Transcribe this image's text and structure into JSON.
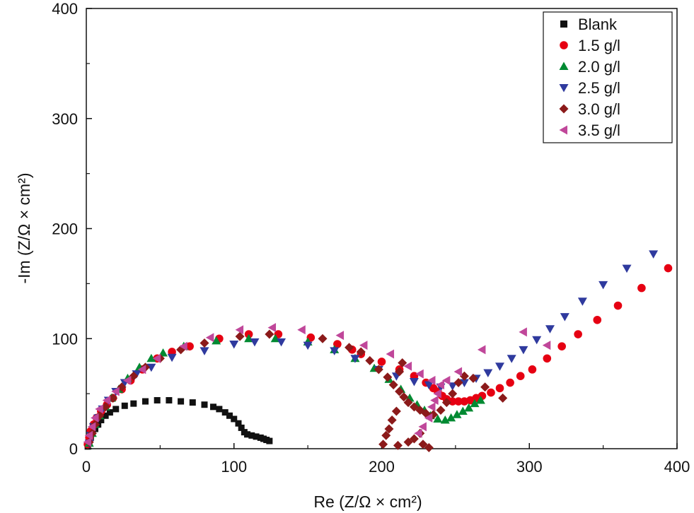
{
  "chart_data": {
    "type": "scatter",
    "title": "",
    "xlabel": "Re (Z/Ω × cm²)",
    "ylabel": "-Im (Z/Ω × cm²)",
    "xlim": [
      0,
      400
    ],
    "ylim": [
      0,
      400
    ],
    "x_ticks": [
      "0",
      "100",
      "200",
      "300",
      "400"
    ],
    "y_ticks": [
      "0",
      "100",
      "200",
      "300",
      "400"
    ],
    "legend_position": "top-right",
    "series": [
      {
        "name": "Blank",
        "marker": "square",
        "color": "#111111",
        "points": [
          [
            1,
            2
          ],
          [
            2,
            6
          ],
          [
            3,
            10
          ],
          [
            4,
            14
          ],
          [
            6,
            18
          ],
          [
            8,
            22
          ],
          [
            10,
            26
          ],
          [
            13,
            30
          ],
          [
            16,
            33
          ],
          [
            20,
            36
          ],
          [
            26,
            39
          ],
          [
            32,
            41
          ],
          [
            40,
            43
          ],
          [
            48,
            44
          ],
          [
            56,
            44
          ],
          [
            64,
            43
          ],
          [
            72,
            42
          ],
          [
            80,
            40
          ],
          [
            86,
            38
          ],
          [
            90,
            36
          ],
          [
            94,
            33
          ],
          [
            97,
            30
          ],
          [
            100,
            27
          ],
          [
            103,
            23
          ],
          [
            105,
            19
          ],
          [
            107,
            15
          ],
          [
            109,
            13
          ],
          [
            112,
            12
          ],
          [
            115,
            11
          ],
          [
            118,
            10
          ],
          [
            120,
            9
          ],
          [
            122,
            8
          ],
          [
            124,
            7
          ]
        ]
      },
      {
        "name": "1.5 g/l",
        "marker": "circle",
        "color": "#e60012",
        "points": [
          [
            1,
            4
          ],
          [
            2,
            10
          ],
          [
            3,
            16
          ],
          [
            5,
            22
          ],
          [
            7,
            28
          ],
          [
            10,
            34
          ],
          [
            14,
            40
          ],
          [
            18,
            46
          ],
          [
            24,
            54
          ],
          [
            30,
            62
          ],
          [
            38,
            72
          ],
          [
            48,
            82
          ],
          [
            58,
            88
          ],
          [
            70,
            93
          ],
          [
            90,
            100
          ],
          [
            110,
            104
          ],
          [
            130,
            104
          ],
          [
            152,
            101
          ],
          [
            170,
            95
          ],
          [
            180,
            90
          ],
          [
            186,
            86
          ],
          [
            200,
            79
          ],
          [
            212,
            72
          ],
          [
            222,
            66
          ],
          [
            230,
            60
          ],
          [
            235,
            55
          ],
          [
            238,
            52
          ],
          [
            241,
            48
          ],
          [
            244,
            45
          ],
          [
            248,
            43
          ],
          [
            252,
            43
          ],
          [
            256,
            43
          ],
          [
            260,
            44
          ],
          [
            264,
            46
          ],
          [
            268,
            48
          ],
          [
            274,
            51
          ],
          [
            280,
            55
          ],
          [
            287,
            60
          ],
          [
            294,
            66
          ],
          [
            302,
            72
          ],
          [
            312,
            82
          ],
          [
            322,
            93
          ],
          [
            333,
            104
          ],
          [
            346,
            117
          ],
          [
            360,
            130
          ],
          [
            376,
            146
          ],
          [
            394,
            164
          ]
        ]
      },
      {
        "name": "2.0 g/l",
        "marker": "triangle-up",
        "color": "#008a32",
        "points": [
          [
            2,
            5
          ],
          [
            4,
            14
          ],
          [
            6,
            22
          ],
          [
            9,
            30
          ],
          [
            13,
            38
          ],
          [
            17,
            46
          ],
          [
            22,
            54
          ],
          [
            28,
            64
          ],
          [
            36,
            74
          ],
          [
            44,
            82
          ],
          [
            52,
            87
          ],
          [
            66,
            93
          ],
          [
            88,
            98
          ],
          [
            110,
            100
          ],
          [
            128,
            100
          ],
          [
            150,
            97
          ],
          [
            168,
            90
          ],
          [
            182,
            82
          ],
          [
            195,
            73
          ],
          [
            205,
            63
          ],
          [
            213,
            54
          ],
          [
            219,
            46
          ],
          [
            224,
            40
          ],
          [
            229,
            35
          ],
          [
            233,
            30
          ],
          [
            238,
            27
          ],
          [
            243,
            26
          ],
          [
            247,
            28
          ],
          [
            251,
            31
          ],
          [
            255,
            34
          ],
          [
            259,
            37
          ],
          [
            263,
            41
          ],
          [
            267,
            44
          ]
        ]
      },
      {
        "name": "2.5 g/l",
        "marker": "triangle-down",
        "color": "#2f3a9e",
        "points": [
          [
            2,
            5
          ],
          [
            3,
            12
          ],
          [
            5,
            20
          ],
          [
            8,
            28
          ],
          [
            11,
            36
          ],
          [
            15,
            44
          ],
          [
            20,
            52
          ],
          [
            26,
            60
          ],
          [
            34,
            68
          ],
          [
            44,
            74
          ],
          [
            58,
            83
          ],
          [
            80,
            89
          ],
          [
            100,
            95
          ],
          [
            114,
            97
          ],
          [
            132,
            97
          ],
          [
            150,
            94
          ],
          [
            168,
            89
          ],
          [
            182,
            82
          ],
          [
            198,
            72
          ],
          [
            210,
            66
          ],
          [
            222,
            61
          ],
          [
            232,
            58
          ],
          [
            240,
            56
          ],
          [
            248,
            57
          ],
          [
            256,
            60
          ],
          [
            264,
            64
          ],
          [
            272,
            69
          ],
          [
            280,
            75
          ],
          [
            288,
            82
          ],
          [
            296,
            90
          ],
          [
            305,
            99
          ],
          [
            314,
            109
          ],
          [
            324,
            120
          ],
          [
            336,
            134
          ],
          [
            350,
            149
          ],
          [
            366,
            164
          ],
          [
            384,
            177
          ]
        ]
      },
      {
        "name": "3.0 g/l",
        "marker": "diamond",
        "color": "#8b1a1a",
        "points": [
          [
            2,
            6
          ],
          [
            4,
            14
          ],
          [
            6,
            22
          ],
          [
            9,
            30
          ],
          [
            13,
            38
          ],
          [
            18,
            46
          ],
          [
            24,
            56
          ],
          [
            32,
            66
          ],
          [
            40,
            74
          ],
          [
            50,
            82
          ],
          [
            64,
            90
          ],
          [
            80,
            96
          ],
          [
            104,
            102
          ],
          [
            124,
            104
          ],
          [
            160,
            100
          ],
          [
            178,
            92
          ],
          [
            186,
            88
          ],
          [
            192,
            80
          ],
          [
            198,
            72
          ],
          [
            204,
            65
          ],
          [
            208,
            58
          ],
          [
            212,
            52
          ],
          [
            215,
            47
          ],
          [
            218,
            42
          ],
          [
            222,
            38
          ],
          [
            226,
            35
          ],
          [
            230,
            32
          ],
          [
            235,
            31
          ],
          [
            240,
            35
          ],
          [
            244,
            42
          ],
          [
            248,
            50
          ],
          [
            252,
            60
          ],
          [
            256,
            66
          ],
          [
            262,
            64
          ],
          [
            270,
            56
          ],
          [
            282,
            46
          ],
          [
            214,
            78
          ],
          [
            212,
            70
          ],
          [
            210,
            34
          ],
          [
            207,
            26
          ],
          [
            205,
            18
          ],
          [
            203,
            12
          ],
          [
            201,
            4
          ],
          [
            211,
            3
          ],
          [
            218,
            6
          ],
          [
            222,
            9
          ],
          [
            226,
            14
          ],
          [
            228,
            4
          ],
          [
            232,
            1
          ]
        ]
      },
      {
        "name": "3.5 g/l",
        "marker": "triangle-left",
        "color": "#c0479a",
        "points": [
          [
            1,
            6
          ],
          [
            2,
            12
          ],
          [
            4,
            20
          ],
          [
            6,
            28
          ],
          [
            9,
            36
          ],
          [
            14,
            44
          ],
          [
            20,
            52
          ],
          [
            28,
            62
          ],
          [
            38,
            72
          ],
          [
            48,
            82
          ],
          [
            66,
            93
          ],
          [
            84,
            101
          ],
          [
            104,
            108
          ],
          [
            126,
            110
          ],
          [
            146,
            108
          ],
          [
            172,
            103
          ],
          [
            188,
            94
          ],
          [
            206,
            86
          ],
          [
            218,
            75
          ],
          [
            226,
            68
          ],
          [
            234,
            62
          ],
          [
            240,
            58
          ],
          [
            244,
            62
          ],
          [
            252,
            70
          ],
          [
            268,
            90
          ],
          [
            296,
            106
          ],
          [
            312,
            94
          ],
          [
            238,
            50
          ],
          [
            236,
            44
          ],
          [
            234,
            38
          ],
          [
            232,
            28
          ],
          [
            228,
            20
          ],
          [
            225,
            14
          ]
        ]
      }
    ]
  }
}
